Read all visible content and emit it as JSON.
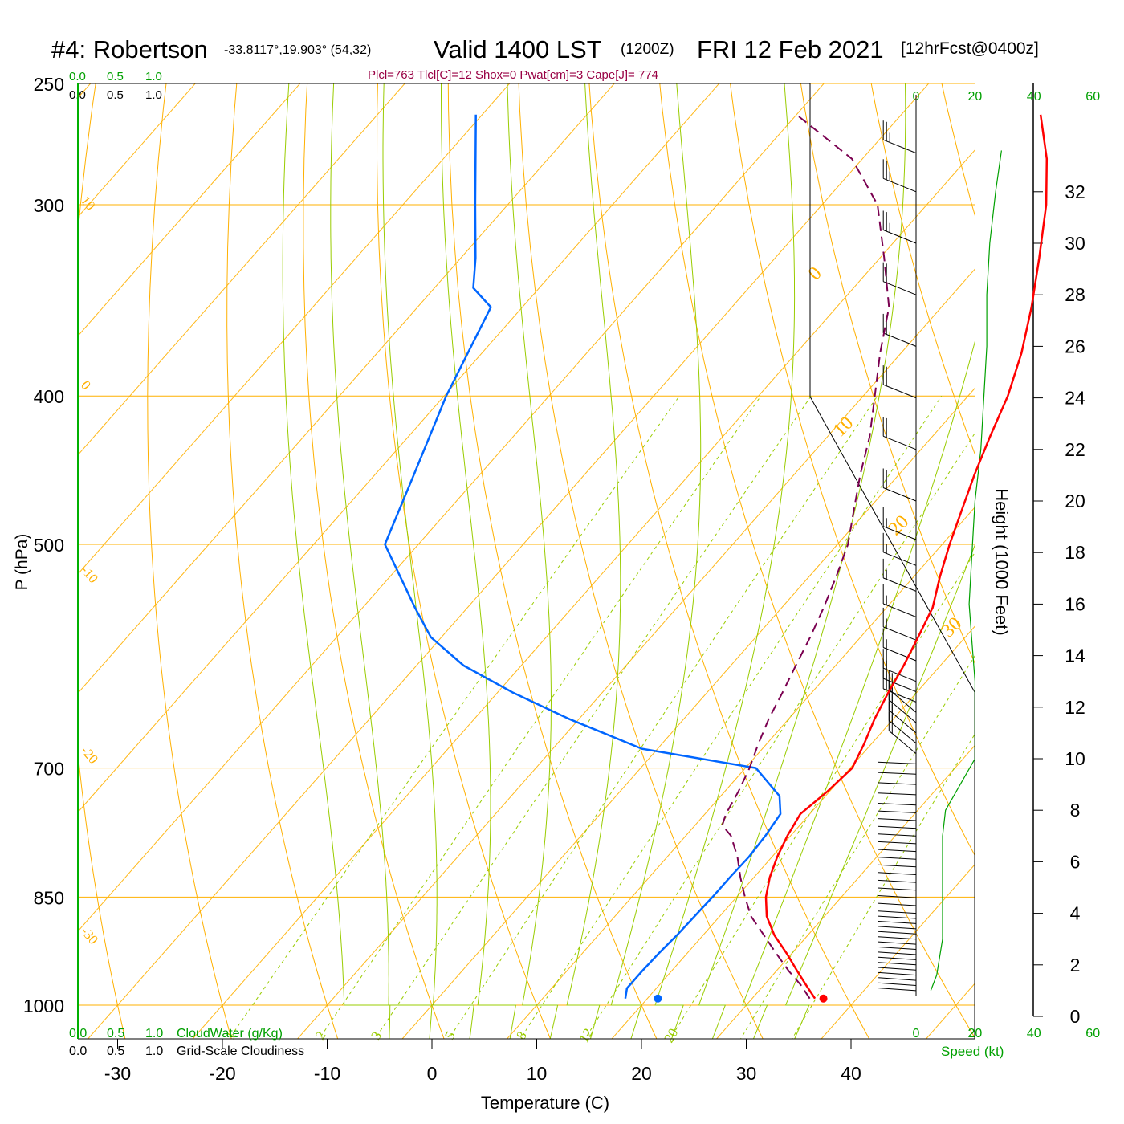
{
  "header": {
    "station": "#4: Robertson",
    "coords": "-33.8117°,19.903° (54,32)",
    "valid": "Valid 1400 LST",
    "utc": "(1200Z)",
    "date": "FRI 12 Feb 2021",
    "forecast": "[12hrFcst@0400z]",
    "indices": "Plcl=763 Tlcl[C]=12 Shox=0 Pwat[cm]=3 Cape[J]= 774"
  },
  "colors": {
    "temperature": "#ff0000",
    "dewpoint": "#0066ff",
    "parcel": "#7a0050",
    "isotherm": "#ffb000",
    "dry_adiabat": "#ffb000",
    "moist_adiabat": "#99cc00",
    "mixing_ratio": "#99cc00",
    "cloud": "#00a000",
    "index_text": "#990044"
  },
  "chart_data": [
    {
      "type": "line",
      "chart": "skew-T log-P",
      "xlabel": "Temperature (C)",
      "ylabel": "P (hPa)",
      "xlim": [
        -34,
        46
      ],
      "ylim": [
        1000,
        250
      ],
      "y_scale": "log",
      "xticks": [
        -30,
        -20,
        -10,
        0,
        10,
        20,
        30,
        40
      ],
      "yticks": [
        250,
        300,
        400,
        500,
        700,
        850,
        1000
      ],
      "isotherm_labels": [
        "10",
        "0",
        "-10",
        "-20",
        "-30",
        "0",
        "10",
        "20",
        "30"
      ],
      "mixing_ratio_labels": [
        "1",
        "2",
        "3",
        "5",
        "8",
        "12",
        "20"
      ],
      "series": [
        {
          "name": "Temperature",
          "points": [
            [
              36.0,
              990
            ],
            [
              34.0,
              970
            ],
            [
              32.0,
              950
            ],
            [
              29.5,
              925
            ],
            [
              26.8,
              900
            ],
            [
              24.5,
              875
            ],
            [
              22.8,
              850
            ],
            [
              21.5,
              825
            ],
            [
              20.5,
              800
            ],
            [
              19.7,
              775
            ],
            [
              19.1,
              750
            ],
            [
              19.8,
              725
            ],
            [
              20.2,
              700
            ],
            [
              19.3,
              675
            ],
            [
              18.2,
              650
            ],
            [
              17.3,
              625
            ],
            [
              16.5,
              600
            ],
            [
              15.5,
              575
            ],
            [
              14.4,
              550
            ],
            [
              12.5,
              525
            ],
            [
              10.7,
              500
            ],
            [
              9.0,
              475
            ],
            [
              7.2,
              450
            ],
            [
              5.5,
              425
            ],
            [
              3.8,
              400
            ],
            [
              1.5,
              375
            ],
            [
              -1.4,
              350
            ],
            [
              -4.8,
              325
            ],
            [
              -8.6,
              300
            ],
            [
              -12.4,
              280
            ],
            [
              -16.7,
              262
            ]
          ]
        },
        {
          "name": "Dewpoint",
          "points": [
            [
              17.9,
              990
            ],
            [
              17.2,
              975
            ],
            [
              17.2,
              950
            ],
            [
              17.3,
              925
            ],
            [
              17.5,
              900
            ],
            [
              17.6,
              875
            ],
            [
              17.7,
              850
            ],
            [
              17.7,
              825
            ],
            [
              17.8,
              800
            ],
            [
              17.6,
              775
            ],
            [
              17.2,
              750
            ],
            [
              15.6,
              730
            ],
            [
              11.0,
              700
            ],
            [
              -1.5,
              680
            ],
            [
              -11.0,
              650
            ],
            [
              -18.5,
              625
            ],
            [
              -25.5,
              600
            ],
            [
              -31.0,
              575
            ],
            [
              -35.0,
              550
            ],
            [
              -43.2,
              500
            ],
            [
              -46.3,
              450
            ],
            [
              -49.8,
              400
            ],
            [
              -53.0,
              350
            ],
            [
              -56.3,
              340
            ],
            [
              -58.6,
              325
            ],
            [
              -63.1,
              300
            ],
            [
              -70.6,
              262
            ]
          ]
        },
        {
          "name": "Parcel",
          "points": [
            [
              35.5,
              990
            ],
            [
              33.5,
              970
            ],
            [
              31.2,
              950
            ],
            [
              28.5,
              925
            ],
            [
              25.8,
              900
            ],
            [
              23.0,
              875
            ],
            [
              20.8,
              850
            ],
            [
              18.7,
              825
            ],
            [
              16.7,
              800
            ],
            [
              14.3,
              775
            ],
            [
              12.6,
              763
            ],
            [
              12.0,
              750
            ],
            [
              11.3,
              725
            ],
            [
              10.4,
              700
            ],
            [
              9.2,
              675
            ],
            [
              8.1,
              650
            ],
            [
              7.2,
              625
            ],
            [
              6.2,
              600
            ],
            [
              5.2,
              575
            ],
            [
              4.0,
              550
            ],
            [
              2.6,
              525
            ],
            [
              1.0,
              500
            ],
            [
              -1.3,
              475
            ],
            [
              -3.7,
              450
            ],
            [
              -6.0,
              425
            ],
            [
              -8.9,
              400
            ],
            [
              -12.0,
              375
            ],
            [
              -15.0,
              350
            ],
            [
              -19.6,
              325
            ],
            [
              -24.7,
              300
            ],
            [
              -31.0,
              280
            ],
            [
              -40.0,
              262
            ]
          ]
        }
      ],
      "markers": [
        {
          "name": "surface-temperature",
          "x": 36.8,
          "p": 990
        },
        {
          "name": "surface-dewpoint",
          "x": 21.0,
          "p": 990
        }
      ]
    },
    {
      "type": "line",
      "chart": "wind speed profile",
      "xlabel": "Speed (kt)",
      "ylabel": "Height (1000 Feet)",
      "xlim": [
        0,
        60
      ],
      "ylim": [
        0,
        34
      ],
      "xticks_top": [
        "0",
        "20",
        "40",
        "60"
      ],
      "xticks_bottom": [
        "0",
        "20",
        "40",
        "60"
      ],
      "yticks": [
        0,
        2,
        4,
        6,
        8,
        10,
        12,
        14,
        16,
        18,
        20,
        22,
        24,
        26,
        28,
        30,
        32
      ],
      "series": [
        {
          "name": "Speed",
          "points": [
            [
              5,
              1.0
            ],
            [
              7,
              1.6
            ],
            [
              9,
              3.0
            ],
            [
              9,
              5.0
            ],
            [
              9,
              7.0
            ],
            [
              10,
              8.0
            ],
            [
              16,
              9.2
            ],
            [
              20,
              10.0
            ],
            [
              20,
              12.5
            ],
            [
              20,
              13.0
            ],
            [
              19,
              14.5
            ],
            [
              18,
              16.0
            ],
            [
              19,
              18.0
            ],
            [
              20,
              20.0
            ],
            [
              22,
              22.0
            ],
            [
              23,
              24.0
            ],
            [
              24,
              26.0
            ],
            [
              24,
              28.0
            ],
            [
              25,
              30.0
            ],
            [
              27,
              32.0
            ],
            [
              29,
              33.6
            ]
          ]
        }
      ]
    }
  ],
  "wind_barbs": {
    "levels_kft": [
      1.0,
      1.2,
      1.4,
      1.6,
      1.8,
      2.0,
      2.2,
      2.4,
      2.6,
      2.8,
      3.0,
      3.2,
      3.4,
      3.6,
      3.8,
      4.0,
      4.3,
      4.6,
      4.9,
      5.2,
      5.5,
      5.8,
      6.1,
      6.4,
      6.7,
      7.0,
      7.3,
      7.6,
      7.9,
      8.2,
      8.6,
      9.0,
      9.4,
      9.8,
      10.2,
      10.6,
      11.0,
      11.4,
      11.8,
      12.2,
      12.6,
      13.0,
      13.8,
      14.6,
      15.5,
      16.5,
      17.5,
      18.5,
      20.0,
      22.0,
      24.0,
      26.0,
      28.0,
      30.0,
      32.0,
      33.5
    ],
    "speed_kt": [
      5,
      7,
      8,
      9,
      9,
      9,
      9,
      9,
      9,
      9,
      9,
      9,
      9,
      9,
      9,
      9,
      9,
      9,
      9,
      9,
      9,
      9,
      9,
      10,
      10,
      10,
      10,
      10,
      11,
      12,
      14,
      16,
      18,
      20,
      20,
      20,
      20,
      20,
      20,
      20,
      20,
      20,
      19,
      19,
      18,
      18,
      18,
      19,
      20,
      22,
      23,
      24,
      24,
      25,
      27,
      29
    ]
  },
  "legend": {
    "cloudwater_scale_top": [
      "0.0",
      "0.5",
      "1.0"
    ],
    "cloudiness_scale_top": [
      "0.0",
      "0.5",
      "1.0"
    ],
    "cloudwater_scale_bottom": [
      "0.0",
      "0.5",
      "1.0"
    ],
    "cloudiness_scale_bottom": [
      "0.0",
      "0.5",
      "1.0"
    ],
    "cloudwater_label": "CloudWater (g/Kg)",
    "cloudiness_label": "Grid-Scale Cloudiness"
  }
}
